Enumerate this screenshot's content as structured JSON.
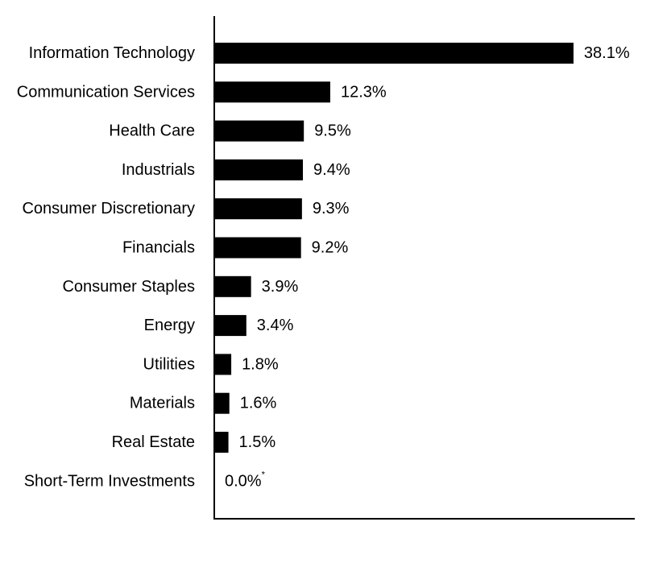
{
  "chart_data": {
    "type": "bar",
    "orientation": "horizontal",
    "categories": [
      "Information Technology",
      "Communication Services",
      "Health Care",
      "Industrials",
      "Consumer Discretionary",
      "Financials",
      "Consumer Staples",
      "Energy",
      "Utilities",
      "Materials",
      "Real Estate",
      "Short-Term Investments"
    ],
    "values": [
      38.1,
      12.3,
      9.5,
      9.4,
      9.3,
      9.2,
      3.9,
      3.4,
      1.8,
      1.6,
      1.5,
      0.0
    ],
    "value_labels": [
      "38.1%",
      "12.3%",
      "9.5%",
      "9.4%",
      "9.3%",
      "9.2%",
      "3.9%",
      "3.4%",
      "1.8%",
      "1.6%",
      "1.5%",
      "0.0%"
    ],
    "label_footnotes": [
      "",
      "",
      "",
      "",
      "",
      "",
      "",
      "",
      "",
      "",
      "",
      "*"
    ],
    "title": "",
    "xlabel": "",
    "ylabel": "",
    "xlim": [
      0,
      44.6
    ],
    "grid": false,
    "legend": "none",
    "bar_color": "#000000"
  }
}
